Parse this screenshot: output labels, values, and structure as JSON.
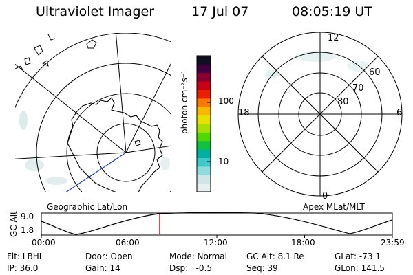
{
  "header": {
    "instrument": "Ultraviolet Imager",
    "date": "17 Jul 07",
    "time": "08:05:19 UT"
  },
  "left_panel": {
    "caption": "Geographic Lat/Lon"
  },
  "right_panel": {
    "caption": "Apex MLat/MLT",
    "mlt_labels": {
      "top": "12",
      "right": "6",
      "bottom": "0",
      "left": "18"
    },
    "lat_labels": [
      "60",
      "70",
      "80"
    ]
  },
  "colorbar": {
    "unit_label": "photon cm⁻²s⁻¹",
    "scale": "log",
    "ticks": [
      "100",
      "10"
    ],
    "colors": [
      "#e8eeee",
      "#cfe6e6",
      "#8fdcdc",
      "#3ec8c8",
      "#00b0a0",
      "#10c040",
      "#50d800",
      "#a8e000",
      "#e8e000",
      "#f8b800",
      "#f87800",
      "#e82000",
      "#c80018",
      "#880030",
      "#400040",
      "#101020"
    ]
  },
  "timeline": {
    "axis_label": "GC Alt",
    "y_ticks": [
      "9.0",
      "1.8"
    ],
    "x_ticks": [
      "00:00",
      "06:00",
      "12:00",
      "18:00",
      "23:59"
    ],
    "current_time": "08:05:19",
    "marker_color": "#e00000"
  },
  "status": {
    "row1": {
      "filter": "Flt: LBHL",
      "door": "Door: Open",
      "mode": "Mode: Normal",
      "gc_alt": "GC Alt: 8.1 Re",
      "glat": "GLat: -73.1"
    },
    "row2": {
      "ip": "IP: 36.0",
      "gain": "Gain: 14",
      "dsp": "Dsp:   -0.5",
      "seq": "Seq: 39",
      "glon": "GLon: 141.5"
    }
  }
}
